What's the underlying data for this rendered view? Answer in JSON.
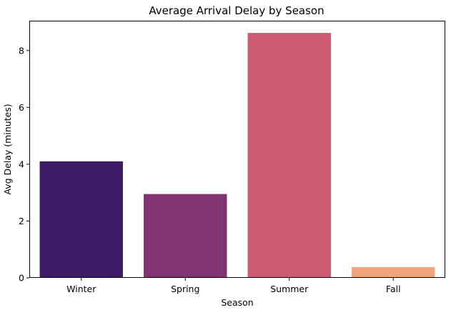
{
  "chart_data": {
    "type": "bar",
    "title": "Average Arrival Delay by Season",
    "xlabel": "Season",
    "ylabel": "Avg Delay (minutes)",
    "categories": [
      "Winter",
      "Spring",
      "Summer",
      "Fall"
    ],
    "values": [
      4.1,
      2.95,
      8.62,
      0.38
    ],
    "colors": [
      "#3d1a64",
      "#823373",
      "#cc5a71",
      "#f2a57b"
    ],
    "ylim": [
      0,
      9.05
    ],
    "yticks": [
      0,
      2,
      4,
      6,
      8
    ],
    "grid": false,
    "legend": "none"
  }
}
